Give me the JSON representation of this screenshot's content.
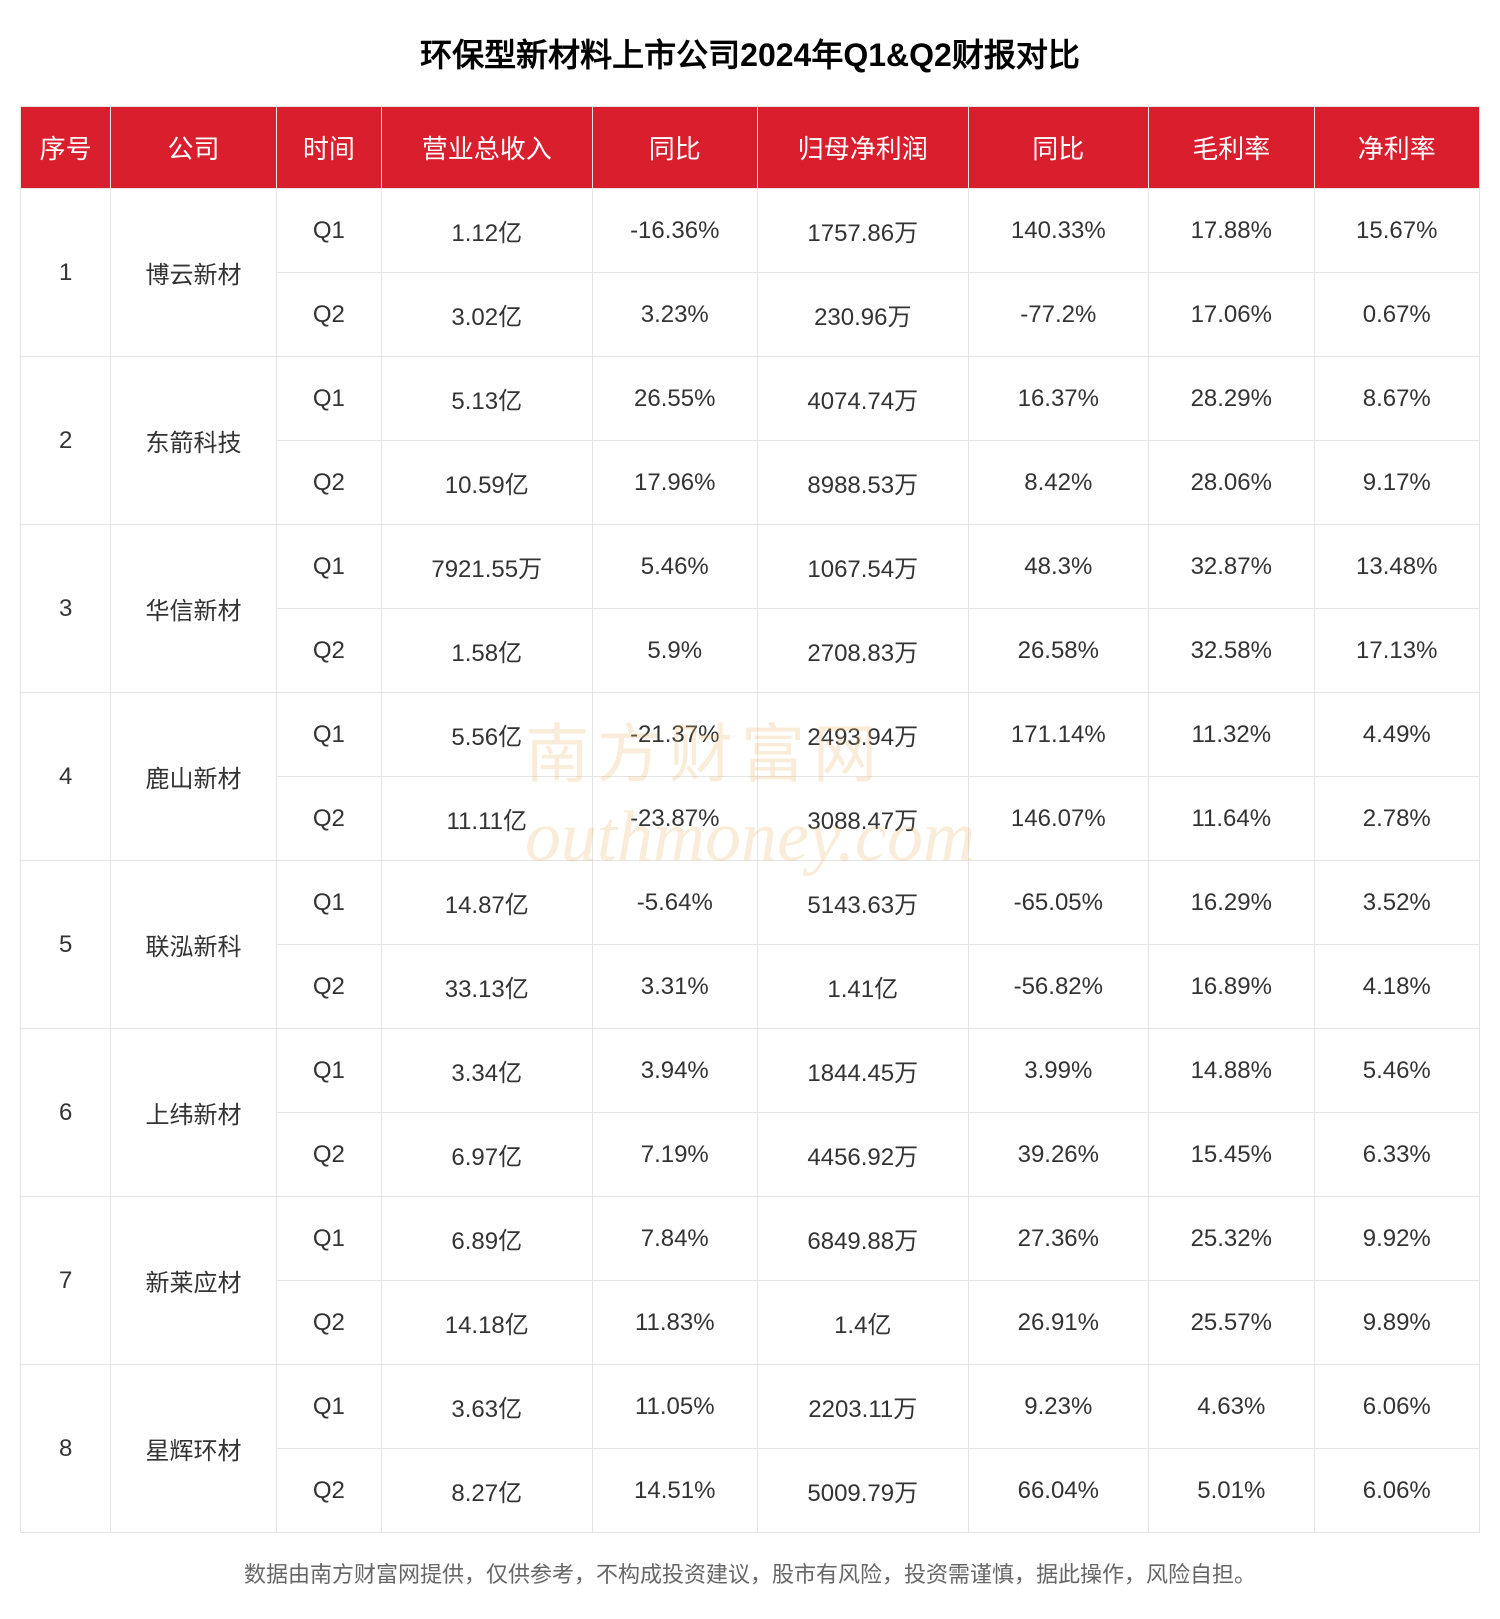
{
  "title": "环保型新材料上市公司2024年Q1&Q2财报对比",
  "columns": [
    "序号",
    "公司",
    "时间",
    "营业总收入",
    "同比",
    "归母净利润",
    "同比",
    "毛利率",
    "净利率"
  ],
  "companies": [
    {
      "num": "1",
      "name": "博云新材",
      "q1": {
        "time": "Q1",
        "revenue": "1.12亿",
        "yoy1": "-16.36%",
        "profit": "1757.86万",
        "yoy2": "140.33%",
        "gross": "17.88%",
        "net": "15.67%"
      },
      "q2": {
        "time": "Q2",
        "revenue": "3.02亿",
        "yoy1": "3.23%",
        "profit": "230.96万",
        "yoy2": "-77.2%",
        "gross": "17.06%",
        "net": "0.67%"
      }
    },
    {
      "num": "2",
      "name": "东箭科技",
      "q1": {
        "time": "Q1",
        "revenue": "5.13亿",
        "yoy1": "26.55%",
        "profit": "4074.74万",
        "yoy2": "16.37%",
        "gross": "28.29%",
        "net": "8.67%"
      },
      "q2": {
        "time": "Q2",
        "revenue": "10.59亿",
        "yoy1": "17.96%",
        "profit": "8988.53万",
        "yoy2": "8.42%",
        "gross": "28.06%",
        "net": "9.17%"
      }
    },
    {
      "num": "3",
      "name": "华信新材",
      "q1": {
        "time": "Q1",
        "revenue": "7921.55万",
        "yoy1": "5.46%",
        "profit": "1067.54万",
        "yoy2": "48.3%",
        "gross": "32.87%",
        "net": "13.48%"
      },
      "q2": {
        "time": "Q2",
        "revenue": "1.58亿",
        "yoy1": "5.9%",
        "profit": "2708.83万",
        "yoy2": "26.58%",
        "gross": "32.58%",
        "net": "17.13%"
      }
    },
    {
      "num": "4",
      "name": "鹿山新材",
      "q1": {
        "time": "Q1",
        "revenue": "5.56亿",
        "yoy1": "-21.37%",
        "profit": "2493.94万",
        "yoy2": "171.14%",
        "gross": "11.32%",
        "net": "4.49%"
      },
      "q2": {
        "time": "Q2",
        "revenue": "11.11亿",
        "yoy1": "-23.87%",
        "profit": "3088.47万",
        "yoy2": "146.07%",
        "gross": "11.64%",
        "net": "2.78%"
      }
    },
    {
      "num": "5",
      "name": "联泓新科",
      "q1": {
        "time": "Q1",
        "revenue": "14.87亿",
        "yoy1": "-5.64%",
        "profit": "5143.63万",
        "yoy2": "-65.05%",
        "gross": "16.29%",
        "net": "3.52%"
      },
      "q2": {
        "time": "Q2",
        "revenue": "33.13亿",
        "yoy1": "3.31%",
        "profit": "1.41亿",
        "yoy2": "-56.82%",
        "gross": "16.89%",
        "net": "4.18%"
      }
    },
    {
      "num": "6",
      "name": "上纬新材",
      "q1": {
        "time": "Q1",
        "revenue": "3.34亿",
        "yoy1": "3.94%",
        "profit": "1844.45万",
        "yoy2": "3.99%",
        "gross": "14.88%",
        "net": "5.46%"
      },
      "q2": {
        "time": "Q2",
        "revenue": "6.97亿",
        "yoy1": "7.19%",
        "profit": "4456.92万",
        "yoy2": "39.26%",
        "gross": "15.45%",
        "net": "6.33%"
      }
    },
    {
      "num": "7",
      "name": "新莱应材",
      "q1": {
        "time": "Q1",
        "revenue": "6.89亿",
        "yoy1": "7.84%",
        "profit": "6849.88万",
        "yoy2": "27.36%",
        "gross": "25.32%",
        "net": "9.92%"
      },
      "q2": {
        "time": "Q2",
        "revenue": "14.18亿",
        "yoy1": "11.83%",
        "profit": "1.4亿",
        "yoy2": "26.91%",
        "gross": "25.57%",
        "net": "9.89%"
      }
    },
    {
      "num": "8",
      "name": "星辉环材",
      "q1": {
        "time": "Q1",
        "revenue": "3.63亿",
        "yoy1": "11.05%",
        "profit": "2203.11万",
        "yoy2": "9.23%",
        "gross": "4.63%",
        "net": "6.06%"
      },
      "q2": {
        "time": "Q2",
        "revenue": "8.27亿",
        "yoy1": "14.51%",
        "profit": "5009.79万",
        "yoy2": "66.04%",
        "gross": "5.01%",
        "net": "6.06%"
      }
    }
  ],
  "footer": "数据由南方财富网提供，仅供参考，不构成投资建议，股市有风险，投资需谨慎，据此操作，风险自担。",
  "watermark_cn": "南方财富网",
  "watermark_en": "outhmoney.com",
  "styling": {
    "header_bg": "#d91e2e",
    "header_text": "#ffffff",
    "cell_text": "#333333",
    "border_color": "#e5e5e5",
    "footer_text": "#666666",
    "title_fontsize": 32,
    "header_fontsize": 26,
    "cell_fontsize": 24,
    "footer_fontsize": 22
  }
}
